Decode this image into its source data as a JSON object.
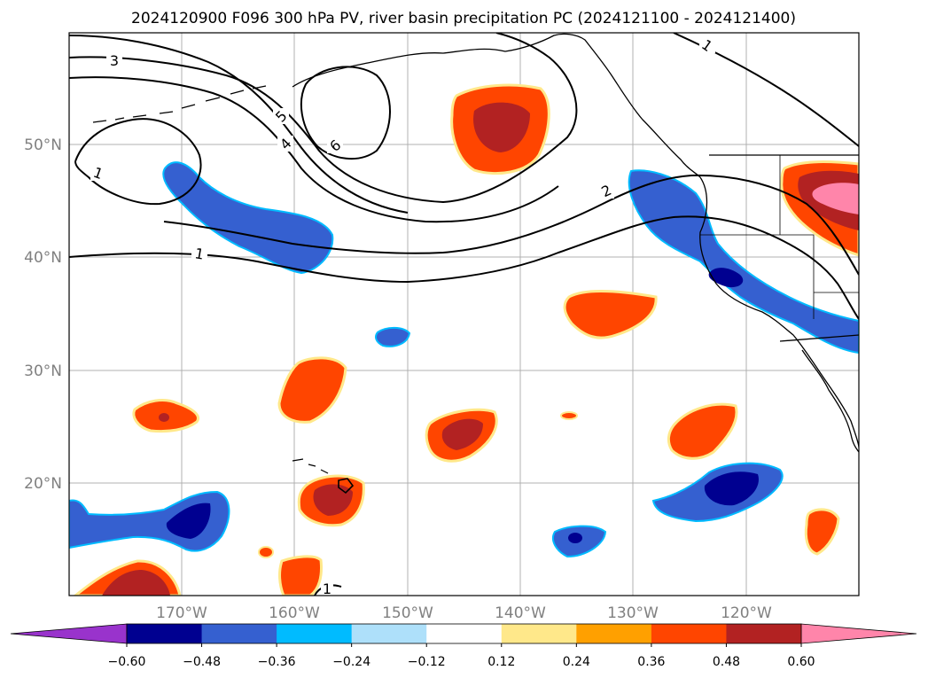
{
  "title": "2024120900 F096 300 hPa PV, river basin precipitation PC (2024121100 - 2024121400)",
  "map": {
    "lat_labels": [
      "50°N",
      "40°N",
      "30°N",
      "20°N"
    ],
    "lon_labels": [
      "170°W",
      "160°W",
      "150°W",
      "140°W",
      "130°W",
      "120°W"
    ],
    "lon_range": [
      -180,
      -110
    ],
    "lat_range": [
      10,
      60
    ],
    "gridlines": true,
    "gridline_color": "#b0b0b0",
    "tick_label_color": "#808080"
  },
  "contours": {
    "variable": "300 hPa PV",
    "color": "#000000",
    "labels": [
      "3",
      "5",
      "4",
      "6",
      "1",
      "1",
      "2",
      "1",
      "1"
    ]
  },
  "colorbar": {
    "colors": [
      "#9933cc",
      "#000090",
      "#3560d0",
      "#00bbff",
      "#aee0fa",
      "#ffffff",
      "#ffe88a",
      "#ffa000",
      "#ff4500",
      "#b22222",
      "#ff85aa"
    ],
    "tick_labels": [
      "−0.60",
      "−0.48",
      "−0.36",
      "−0.24",
      "−0.12",
      "0.12",
      "0.24",
      "0.36",
      "0.48",
      "0.60"
    ],
    "levels": [
      -0.6,
      -0.48,
      -0.36,
      -0.24,
      -0.12,
      0.12,
      0.24,
      0.36,
      0.48,
      0.6
    ],
    "extend": "both"
  },
  "chart_data": {
    "type": "heatmap",
    "title": "2024120900 F096 300 hPa PV, river basin precipitation PC (2024121100 - 2024121400)",
    "xlabel": "",
    "ylabel": "",
    "xlim": [
      -180,
      -110
    ],
    "ylim": [
      10,
      60
    ],
    "grid": true,
    "projection": "PlateCarree"
  }
}
